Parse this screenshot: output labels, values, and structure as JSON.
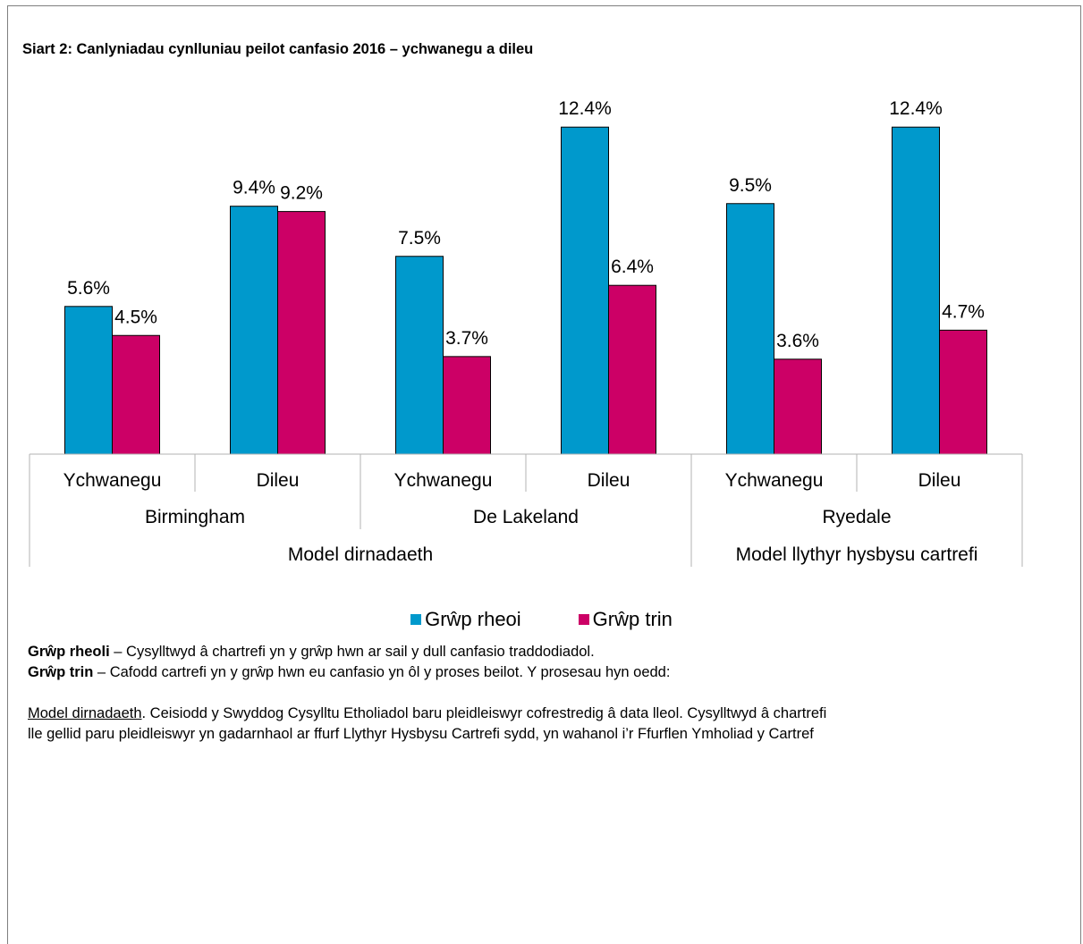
{
  "title": "Siart 2: Canlyniadau cynlluniau peilot canfasio 2016 – ychwanegu a dileu",
  "chart_data": {
    "type": "bar",
    "categories": [
      "Ychwanegu",
      "Dileu",
      "Ychwanegu",
      "Dileu",
      "Ychwanegu",
      "Dileu"
    ],
    "groups": [
      {
        "name": "Birmingham",
        "span": 2
      },
      {
        "name": "De Lakeland",
        "span": 2
      },
      {
        "name": "Ryedale",
        "span": 2
      }
    ],
    "models": [
      {
        "name": "Model dirnadaeth",
        "span": 4
      },
      {
        "name": "Model llythyr hysbysu cartrefi",
        "span": 2
      }
    ],
    "series": [
      {
        "name": "Grŵp rheoi",
        "color": "#0099cc",
        "values": [
          5.6,
          9.4,
          7.5,
          12.4,
          9.5,
          12.4
        ],
        "labels": [
          "5.6%",
          "9.4%",
          "7.5%",
          "12.4%",
          "9.5%",
          "12.4%"
        ]
      },
      {
        "name": "Grŵp trin",
        "color": "#cc0066",
        "values": [
          4.5,
          9.2,
          3.7,
          6.4,
          3.6,
          4.7
        ],
        "labels": [
          "4.5%",
          "9.2%",
          "3.7%",
          "6.4%",
          "3.6%",
          "4.7%"
        ]
      }
    ],
    "ylim": [
      0,
      13
    ],
    "grid": false,
    "legend_position": "bottom"
  },
  "notes": {
    "line1_bold": "Grŵp rheoli",
    "line1_rest": " – Cysylltwyd â chartrefi yn y grŵp hwn ar sail y dull canfasio traddodiadol.",
    "line2_bold": "Grŵp trin",
    "line2_rest": " – Cafodd cartrefi yn y grŵp hwn eu canfasio yn ôl y proses beilot. Y prosesau hyn oedd:",
    "line3_underlined": "Model dirnadaeth",
    "line3_rest": ". Ceisiodd y Swyddog Cysylltu Etholiadol baru pleidleiswyr cofrestredig â data lleol. Cysylltwyd â chartrefi",
    "line4": "lle gellid paru pleidleiswyr yn gadarnhaol ar ffurf Llythyr Hysbysu Cartrefi sydd, yn wahanol i’r Ffurflen Ymholiad y Cartref"
  }
}
